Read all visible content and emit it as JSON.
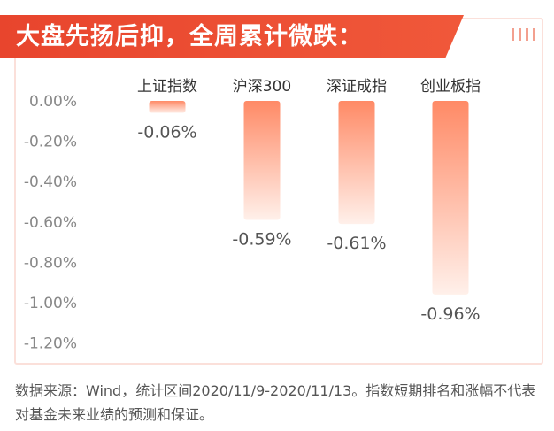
{
  "footnote": "数据来源：Wind，统计区间2020/11/9-2020/11/13。指数短期排名和涨幅不代表对基金未来业绩的预测和保证。",
  "colors": {
    "accent": "#e8452d",
    "bar_top": "#ff8a66",
    "bar_bottom": "#fff0ea"
  },
  "chart_data": {
    "type": "bar",
    "title": "大盘先扬后抑，全周累计微跌：",
    "categories": [
      "上证指数",
      "沪深300",
      "深证成指",
      "创业板指"
    ],
    "values": [
      -0.06,
      -0.59,
      -0.61,
      -0.96
    ],
    "data_labels": [
      "-0.06%",
      "-0.59%",
      "-0.61%",
      "-0.96%"
    ],
    "ylim": [
      -1.2,
      0.0
    ],
    "yticks": [
      0.0,
      -0.2,
      -0.4,
      -0.6,
      -0.8,
      -1.0,
      -1.2
    ],
    "ytick_labels": [
      "0.00%",
      "-0.20%",
      "-0.40%",
      "-0.60%",
      "-0.80%",
      "-1.00%",
      "-1.20%"
    ],
    "grid": false,
    "legend": "none"
  }
}
